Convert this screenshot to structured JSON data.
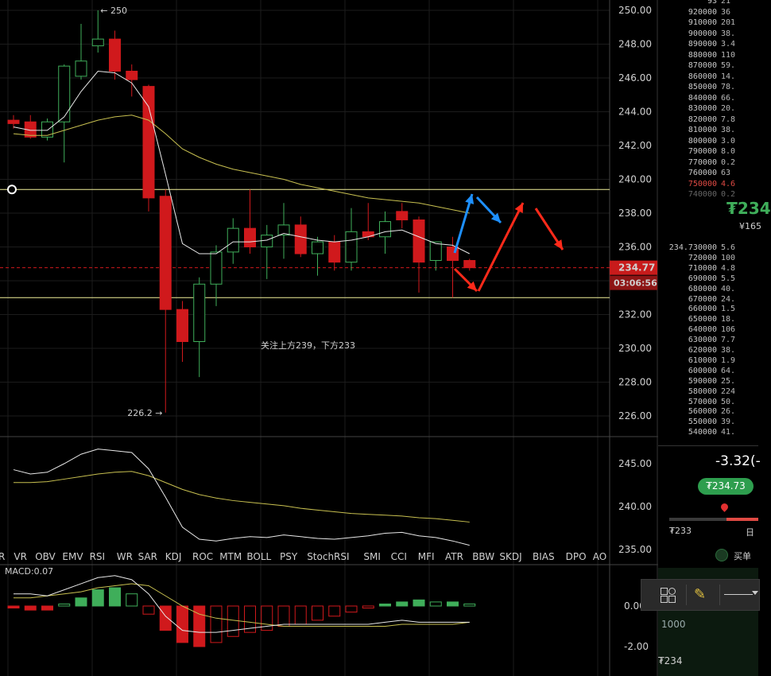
{
  "chart_data": {
    "type": "candlestick",
    "price_axis": {
      "ticks": [
        "250.00",
        "248.00",
        "246.00",
        "244.00",
        "242.00",
        "240.00",
        "238.00",
        "236.00",
        "234.00",
        "232.00",
        "230.00",
        "228.00",
        "226.00"
      ],
      "current_price": "234.77",
      "countdown": "03:06:56"
    },
    "candles": [
      {
        "o": 243.5,
        "h": 243.8,
        "l": 243.0,
        "c": 243.3
      },
      {
        "o": 243.4,
        "h": 243.8,
        "l": 242.4,
        "c": 242.5
      },
      {
        "o": 242.5,
        "h": 243.6,
        "l": 242.3,
        "c": 243.4
      },
      {
        "o": 243.4,
        "h": 246.8,
        "l": 241.0,
        "c": 246.7
      },
      {
        "o": 246.1,
        "h": 249.2,
        "l": 245.9,
        "c": 247.0
      },
      {
        "o": 247.9,
        "h": 250.0,
        "l": 247.5,
        "c": 248.3
      },
      {
        "o": 248.3,
        "h": 248.8,
        "l": 245.9,
        "c": 246.4
      },
      {
        "o": 246.4,
        "h": 246.8,
        "l": 244.9,
        "c": 245.9
      },
      {
        "o": 245.5,
        "h": 245.6,
        "l": 238.1,
        "c": 238.9
      },
      {
        "o": 239.0,
        "h": 239.4,
        "l": 226.2,
        "c": 232.3
      },
      {
        "o": 232.3,
        "h": 232.8,
        "l": 229.2,
        "c": 230.4
      },
      {
        "o": 230.4,
        "h": 234.2,
        "l": 228.3,
        "c": 233.8
      },
      {
        "o": 233.8,
        "h": 236.1,
        "l": 232.5,
        "c": 235.7
      },
      {
        "o": 235.7,
        "h": 237.7,
        "l": 235.0,
        "c": 237.1
      },
      {
        "o": 237.1,
        "h": 239.4,
        "l": 235.6,
        "c": 236.0
      },
      {
        "o": 236.0,
        "h": 237.3,
        "l": 234.1,
        "c": 236.7
      },
      {
        "o": 236.7,
        "h": 238.6,
        "l": 235.3,
        "c": 237.3
      },
      {
        "o": 237.3,
        "h": 237.8,
        "l": 235.4,
        "c": 235.6
      },
      {
        "o": 235.6,
        "h": 236.6,
        "l": 234.3,
        "c": 236.3
      },
      {
        "o": 236.3,
        "h": 236.7,
        "l": 234.6,
        "c": 235.1
      },
      {
        "o": 235.1,
        "h": 238.3,
        "l": 234.6,
        "c": 236.9
      },
      {
        "o": 236.9,
        "h": 238.6,
        "l": 236.4,
        "c": 236.6
      },
      {
        "o": 236.6,
        "h": 238.1,
        "l": 235.6,
        "c": 237.5
      },
      {
        "o": 238.1,
        "h": 238.6,
        "l": 237.1,
        "c": 237.6
      },
      {
        "o": 237.6,
        "h": 237.8,
        "l": 233.3,
        "c": 235.1
      },
      {
        "o": 235.2,
        "h": 236.2,
        "l": 234.6,
        "c": 236.3
      },
      {
        "o": 236.0,
        "h": 236.6,
        "l": 233.0,
        "c": 235.2
      },
      {
        "o": 235.2,
        "h": 235.3,
        "l": 234.6,
        "c": 234.77
      }
    ],
    "ma_fast": [
      243.1,
      242.9,
      242.9,
      243.7,
      245.2,
      246.4,
      246.3,
      245.7,
      244.3,
      240.3,
      236.2,
      235.6,
      235.6,
      236.3,
      236.3,
      236.4,
      236.8,
      236.6,
      236.4,
      236.3,
      236.4,
      236.6,
      236.9,
      237.0,
      236.6,
      236.2,
      236.1,
      235.6
    ],
    "ma_slow": [
      242.7,
      242.6,
      242.6,
      242.9,
      243.2,
      243.5,
      243.7,
      243.8,
      243.5,
      242.7,
      241.8,
      241.3,
      240.9,
      240.6,
      240.4,
      240.2,
      240.0,
      239.7,
      239.5,
      239.3,
      239.1,
      238.9,
      238.8,
      238.7,
      238.6,
      238.4,
      238.2,
      238.0
    ],
    "h_lines": [
      239.4,
      233.0
    ],
    "annotations": {
      "high": "250",
      "low": "226.2",
      "note": "关注上方239，下方233"
    },
    "sub_axis": {
      "ticks": [
        "245.00",
        "240.00",
        "235.00"
      ]
    },
    "sub_fast": [
      244.3,
      243.8,
      244.0,
      245.0,
      246.1,
      246.7,
      246.5,
      246.3,
      244.4,
      241.1,
      237.6,
      236.2,
      236.0,
      236.3,
      236.5,
      236.4,
      236.7,
      236.5,
      236.3,
      236.2,
      236.4,
      236.6,
      236.9,
      237.0,
      236.6,
      236.4,
      236.0,
      235.5
    ],
    "sub_slow": [
      242.8,
      242.8,
      242.9,
      243.2,
      243.5,
      243.8,
      244.0,
      244.1,
      243.6,
      242.8,
      242.0,
      241.4,
      241.0,
      240.7,
      240.5,
      240.3,
      240.1,
      239.8,
      239.6,
      239.4,
      239.2,
      239.1,
      239.0,
      238.9,
      238.7,
      238.6,
      238.4,
      238.2
    ],
    "indicator_tabs": [
      "R",
      "VR",
      "OBV",
      "EMV",
      "RSI",
      "WR",
      "SAR",
      "KDJ",
      "ROC",
      "MTM",
      "BOLL",
      "PSY",
      "StochRSI",
      "SMI",
      "CCI",
      "MFI",
      "ATR",
      "BBW",
      "SKDJ",
      "BIAS",
      "DPO",
      "AO"
    ],
    "macd": {
      "label": "MACD:0.07",
      "ticks": [
        "0.00",
        "-2.00"
      ],
      "hist": [
        -0.1,
        -0.2,
        -0.2,
        0.1,
        0.4,
        0.8,
        0.9,
        0.6,
        -0.4,
        -1.2,
        -1.8,
        -2.0,
        -1.8,
        -1.5,
        -1.3,
        -1.2,
        -1.0,
        -0.9,
        -0.7,
        -0.5,
        -0.3,
        -0.1,
        0.1,
        0.2,
        0.3,
        0.2,
        0.2,
        0.1
      ],
      "dif": [
        0.6,
        0.6,
        0.5,
        0.8,
        1.1,
        1.4,
        1.5,
        1.3,
        0.6,
        -0.5,
        -1.2,
        -1.3,
        -1.3,
        -1.2,
        -1.1,
        -1.0,
        -0.9,
        -0.9,
        -0.9,
        -0.9,
        -0.9,
        -0.9,
        -0.8,
        -0.7,
        -0.8,
        -0.8,
        -0.8,
        -0.8
      ],
      "dea": [
        0.4,
        0.4,
        0.5,
        0.6,
        0.7,
        0.9,
        1.0,
        1.1,
        1.0,
        0.5,
        0.0,
        -0.4,
        -0.6,
        -0.7,
        -0.8,
        -0.9,
        -1.0,
        -1.0,
        -1.0,
        -1.0,
        -1.0,
        -1.0,
        -1.0,
        -0.9,
        -0.9,
        -0.9,
        -0.9,
        -0.8
      ]
    },
    "grid": true
  },
  "orderbook": {
    "asks": [
      {
        "p": "93",
        "q": "21"
      },
      {
        "p": "920000",
        "q": "36"
      },
      {
        "p": "910000",
        "q": "201"
      },
      {
        "p": "900000",
        "q": "38."
      },
      {
        "p": "890000",
        "q": "3.4"
      },
      {
        "p": "880000",
        "q": "110"
      },
      {
        "p": "870000",
        "q": "59."
      },
      {
        "p": "860000",
        "q": "14."
      },
      {
        "p": "850000",
        "q": "78."
      },
      {
        "p": "840000",
        "q": "66."
      },
      {
        "p": "830000",
        "q": "20."
      },
      {
        "p": "820000",
        "q": "7.8"
      },
      {
        "p": "810000",
        "q": "38."
      },
      {
        "p": "800000",
        "q": "3.0"
      },
      {
        "p": "790000",
        "q": "8.0"
      },
      {
        "p": "770000",
        "q": "0.2"
      },
      {
        "p": "760000",
        "q": "63"
      },
      {
        "p": "750000",
        "q": "4.6"
      },
      {
        "p": "740000",
        "q": "0.2"
      }
    ],
    "last_price": "₮234",
    "last_price_sub": "¥165",
    "bids": [
      {
        "p": "234.730000",
        "q": "5.6"
      },
      {
        "p": "720000",
        "q": "100"
      },
      {
        "p": "710000",
        "q": "4.8"
      },
      {
        "p": "690000",
        "q": "5.5"
      },
      {
        "p": "680000",
        "q": "40."
      },
      {
        "p": "670000",
        "q": "24."
      },
      {
        "p": "660000",
        "q": "1.5"
      },
      {
        "p": "650000",
        "q": "18."
      },
      {
        "p": "640000",
        "q": "106"
      },
      {
        "p": "630000",
        "q": "7.7"
      },
      {
        "p": "620000",
        "q": "38."
      },
      {
        "p": "610000",
        "q": "1.9"
      },
      {
        "p": "600000",
        "q": "64."
      },
      {
        "p": "590000",
        "q": "25."
      },
      {
        "p": "580000",
        "q": "224"
      },
      {
        "p": "570000",
        "q": "50."
      },
      {
        "p": "560000",
        "q": "26."
      },
      {
        "p": "550000",
        "q": "39."
      },
      {
        "p": "540000",
        "q": "41."
      }
    ],
    "change": "-3.32(-",
    "price_pill": "₮234.73",
    "range_low": "₮233",
    "range_right": "日",
    "buy_label": "买单",
    "depth_label": "1000",
    "depth_price": "₮234"
  },
  "colors": {
    "up": "#3fae5a",
    "down": "#d0191c",
    "ma_fast": "#e8e8e8",
    "ma_slow": "#c8c050",
    "arrow_blue": "#1e90ff",
    "arrow_red": "#ff2a1a"
  }
}
